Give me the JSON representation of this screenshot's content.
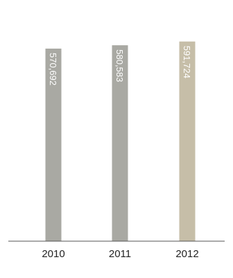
{
  "chart_data": {
    "type": "bar",
    "categories": [
      "2010",
      "2011",
      "2012"
    ],
    "values": [
      570692,
      580583,
      591724
    ],
    "data_labels": [
      "570,692",
      "580,583",
      "591,724"
    ],
    "title": "",
    "xlabel": "",
    "ylabel": "",
    "ylim": [
      0,
      655000
    ],
    "grid": false,
    "legend": "none",
    "colors": [
      "#a9a9a3",
      "#a9a9a3",
      "#c6bea8"
    ],
    "axis_color": "#555555"
  }
}
